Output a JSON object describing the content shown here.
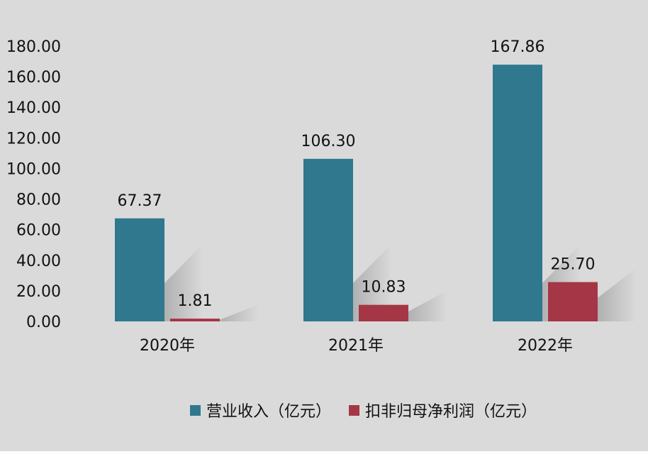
{
  "chart_data": {
    "type": "bar",
    "categories": [
      "2020年",
      "2021年",
      "2022年"
    ],
    "series": [
      {
        "name": "营业收入（亿元）",
        "values": [
          67.37,
          106.3,
          167.86
        ],
        "labels": [
          "67.37",
          "106.30",
          "167.86"
        ],
        "color": "#2f788e"
      },
      {
        "name": "扣非归母净利润（亿元）",
        "values": [
          1.81,
          10.83,
          25.7
        ],
        "labels": [
          "1.81",
          "10.83",
          "25.70"
        ],
        "color": "#a53645"
      }
    ],
    "ylim": [
      0,
      180
    ],
    "yticks": [
      "0.00",
      "20.00",
      "40.00",
      "60.00",
      "80.00",
      "100.00",
      "120.00",
      "140.00",
      "160.00",
      "180.00"
    ],
    "grid": false,
    "legend": "bottom",
    "colors": {
      "background": "#dadada",
      "shadow": "#9a9a9a"
    }
  }
}
